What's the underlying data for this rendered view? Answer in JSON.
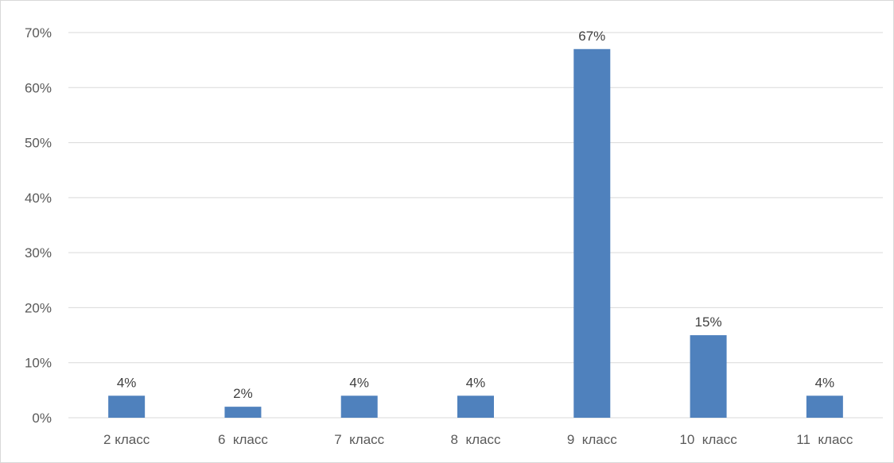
{
  "chart_data": {
    "type": "bar",
    "title": "",
    "xlabel": "",
    "ylabel": "",
    "categories": [
      "2 класс",
      "6  класс",
      "7  класс",
      "8  класс",
      "9  класс",
      "10  класс",
      "11  класс"
    ],
    "values": [
      0.04,
      0.02,
      0.04,
      0.04,
      0.67,
      0.15,
      0.04
    ],
    "data_labels": [
      "4%",
      "2%",
      "4%",
      "4%",
      "67%",
      "15%",
      "4%"
    ],
    "ylim": [
      0,
      0.7
    ],
    "y_ticks": [
      0,
      0.1,
      0.2,
      0.3,
      0.4,
      0.5,
      0.6,
      0.7
    ],
    "y_tick_labels": [
      "0%",
      "10%",
      "20%",
      "30%",
      "40%",
      "50%",
      "60%",
      "70%"
    ],
    "grid": true,
    "legend": "none",
    "colors": {
      "bar": "#4f81bd",
      "grid": "#d9d9d9",
      "axis": "#d9d9d9",
      "tick_text": "#595959",
      "label_text": "#404040"
    }
  }
}
